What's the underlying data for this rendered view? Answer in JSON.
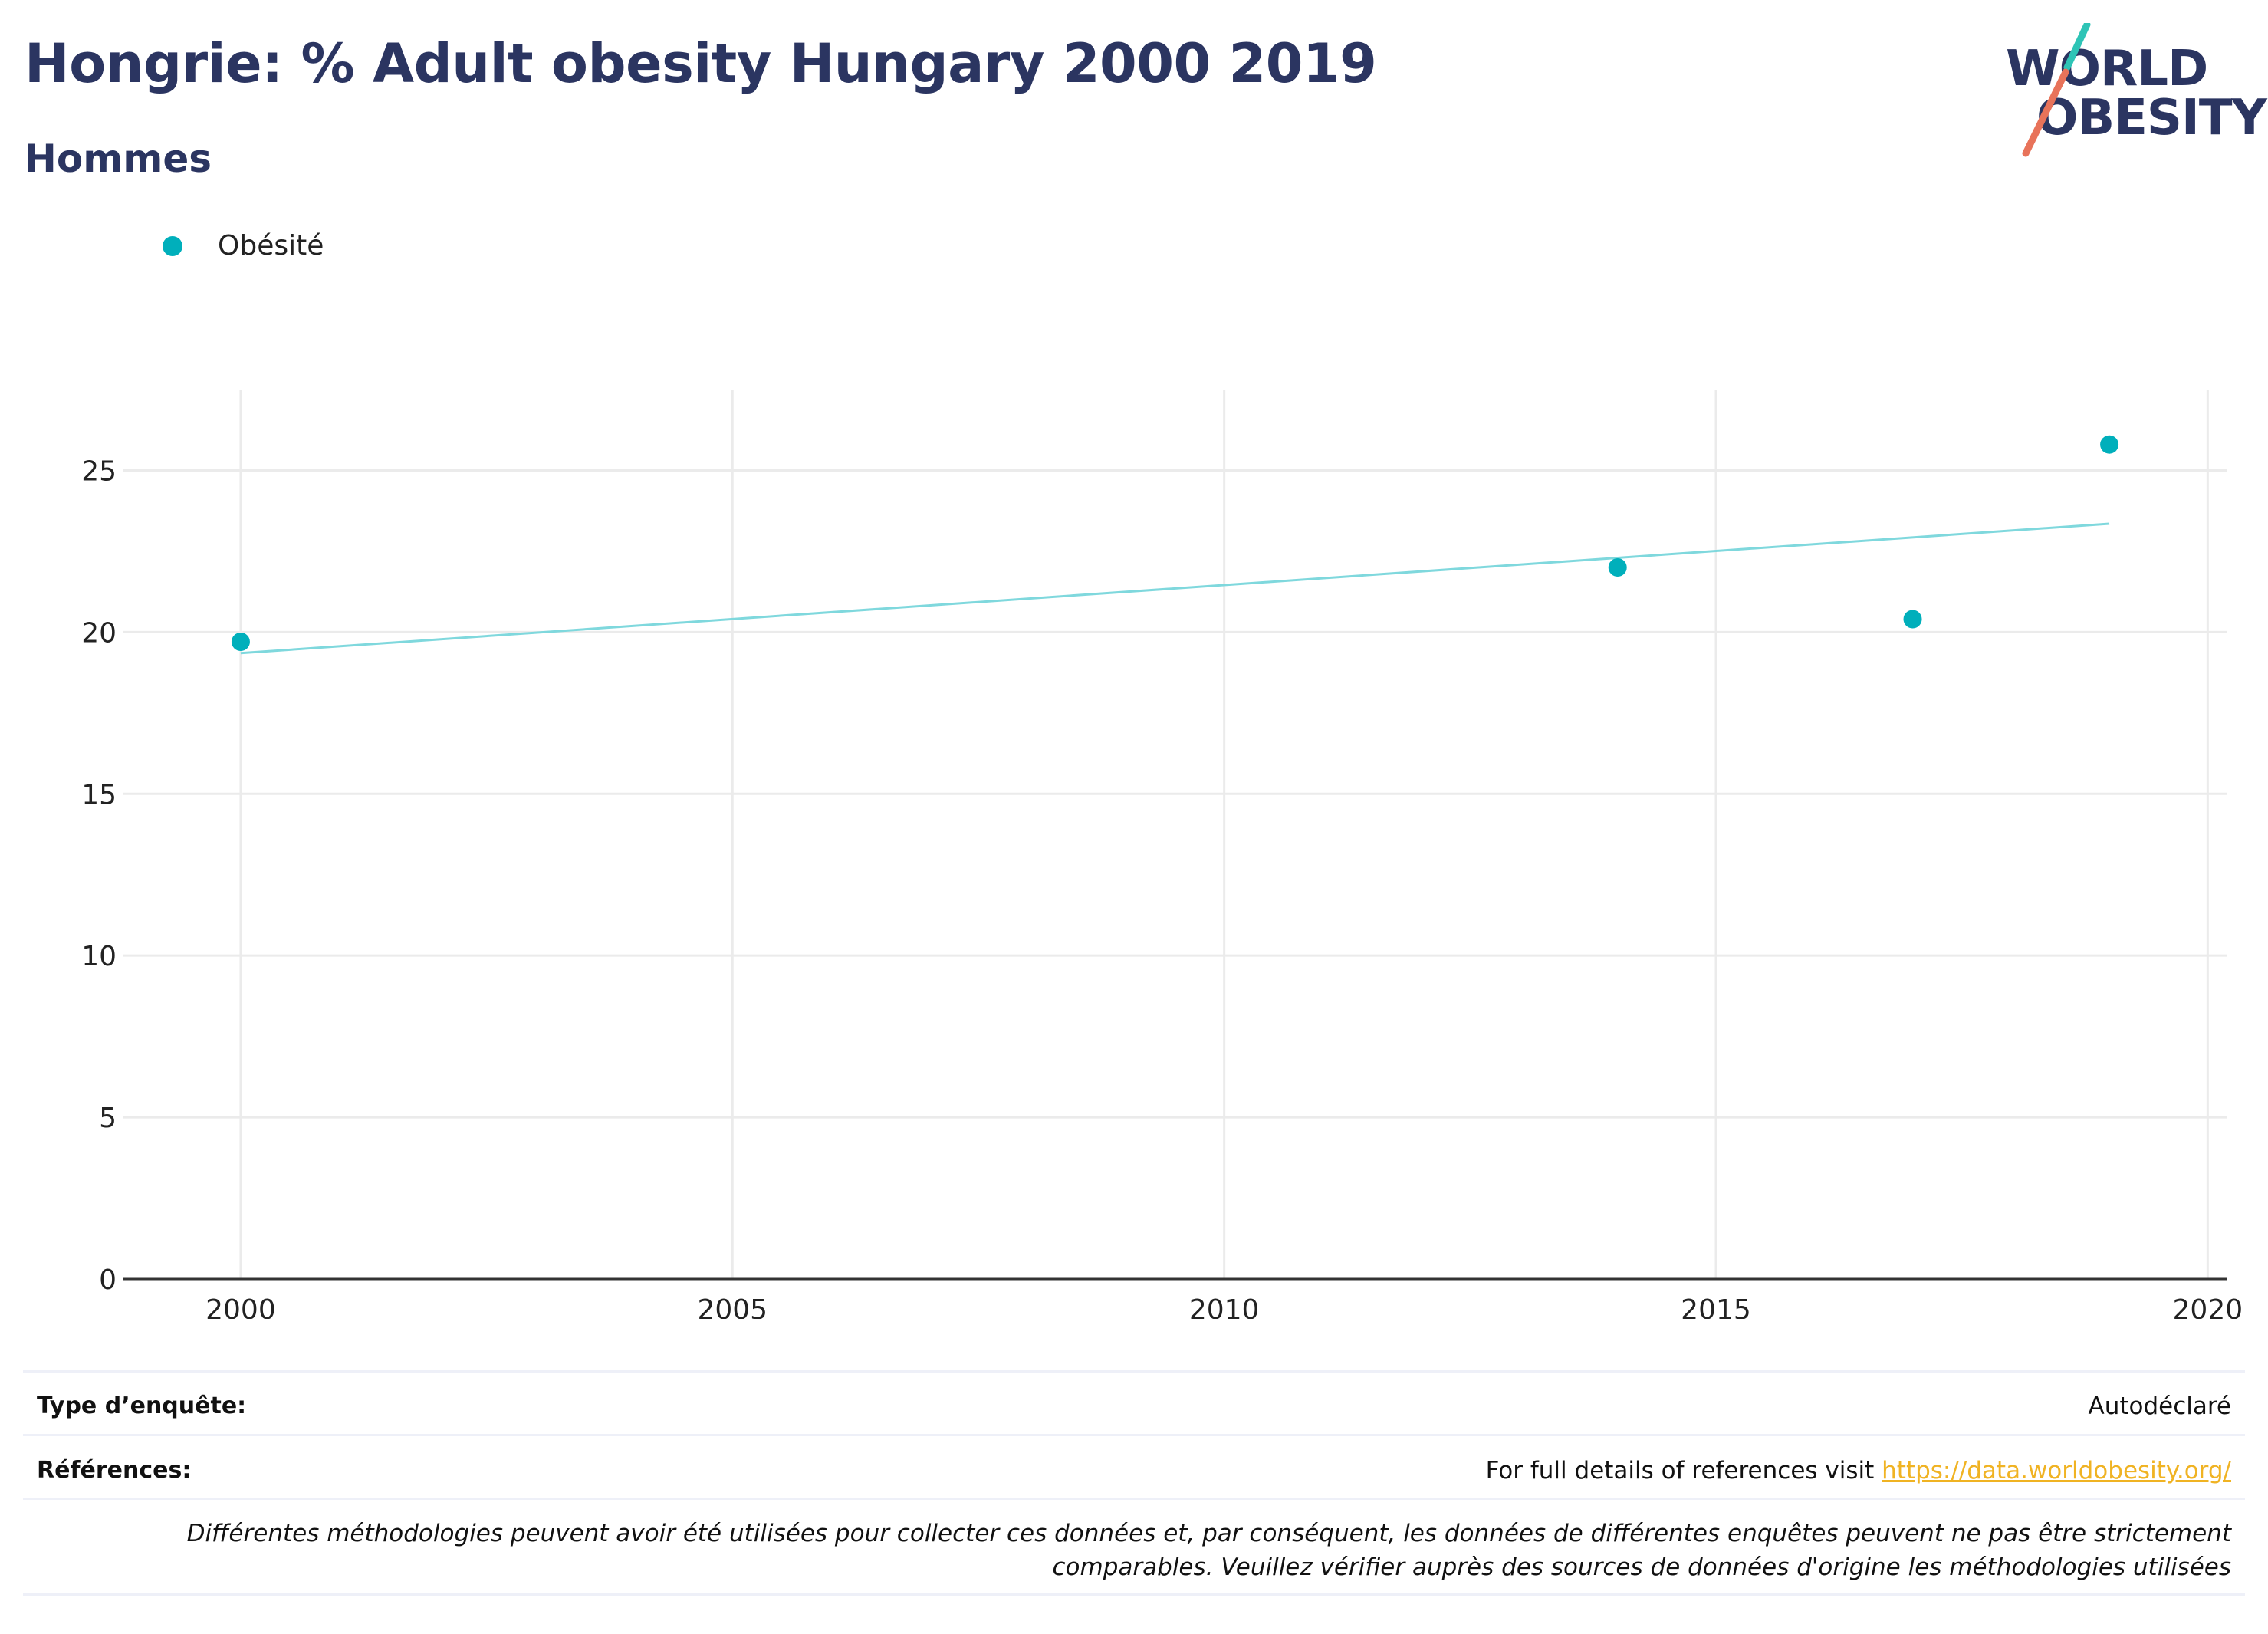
{
  "header": {
    "title": "Hongrie: % Adult obesity Hungary 2000 2019",
    "subtitle": "Hommes"
  },
  "logo": {
    "line1": "WORLD",
    "line2": "OBESITY",
    "slash_teal": "#2ec4b6",
    "slash_coral": "#e8735a"
  },
  "legend": {
    "label": "Obésité",
    "color": "#00afbb"
  },
  "chart_data": {
    "type": "scatter",
    "x": [
      2000,
      2014,
      2017,
      2019
    ],
    "series": [
      {
        "name": "Obésité",
        "values": [
          19.7,
          22.0,
          20.4,
          25.8
        ],
        "color": "#00afbb"
      }
    ],
    "trendline": {
      "x": [
        2000,
        2019
      ],
      "y": [
        19.35,
        23.35
      ],
      "color": "#7fd8dd"
    },
    "xlim": [
      1998.8,
      2020.2
    ],
    "ylim": [
      0,
      27.5
    ],
    "xticks": [
      2000,
      2005,
      2010,
      2015,
      2020
    ],
    "yticks": [
      0,
      5,
      10,
      15,
      20,
      25
    ],
    "grid": true,
    "legend_position": "top-left"
  },
  "footer": {
    "survey_label": "Type d’enquête:",
    "survey_value": "Autodéclaré",
    "refs_label": "Références:",
    "refs_text": "For full details of references visit",
    "refs_link": "https://data.worldobesity.org/",
    "note_line1": "Différentes méthodologies peuvent avoir été utilisées pour collecter ces données et, par conséquent, les données de différentes enquêtes peuvent ne pas être strictement",
    "note_line2": "comparables. Veuillez vérifier auprès des sources de données d'origine les méthodologies utilisées"
  }
}
